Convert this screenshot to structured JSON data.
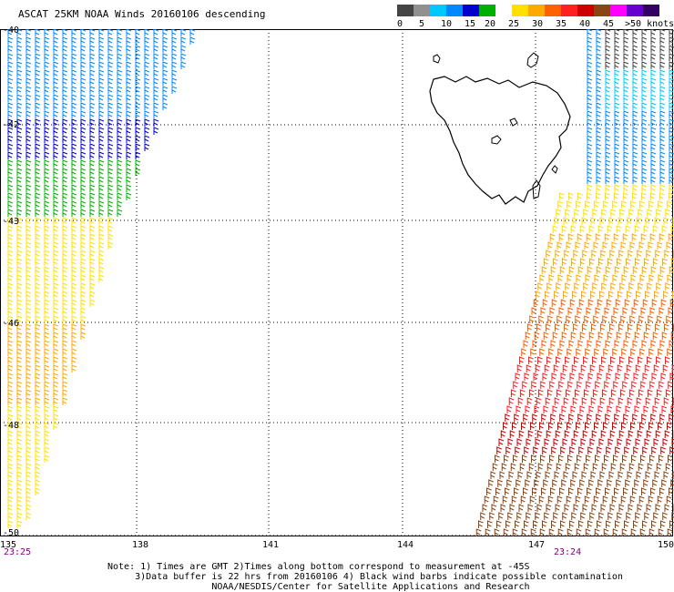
{
  "title": "ASCAT 25KM NOAA Winds 20160106 descending",
  "legend": {
    "colors": [
      "#444444",
      "#909090",
      "#00c8ff",
      "#0088ff",
      "#0000cc",
      "#00b000",
      "#ffffff",
      "#ffe000",
      "#ffaa00",
      "#ff6000",
      "#ff2020",
      "#cc0000",
      "#8b4513",
      "#ff00ff",
      "#6600cc",
      "#330066"
    ],
    "labels": [
      "0",
      "5",
      "10",
      "15",
      "20",
      "25",
      "30",
      "35",
      "40",
      "45",
      ">50 knots"
    ]
  },
  "map": {
    "lon_range": [
      135,
      150
    ],
    "lat_range": [
      -50,
      -40
    ],
    "lat_labels": [
      "-40",
      "-42",
      "-43",
      "-46",
      "-48",
      "-50"
    ],
    "lon_labels": [
      "135",
      "138",
      "141",
      "144",
      "147",
      "150"
    ],
    "times": [
      "23:25",
      "23:24"
    ]
  },
  "note_lines": [
    "Note: 1) Times are GMT 2)Times along bottom correspond to measurement at -45S",
    "3)Data buffer is 22 hrs from 20160106 4) Black wind barbs indicate possible contamination",
    "NOAA/NESDIS/Center for Satellite Applications and Research"
  ]
}
